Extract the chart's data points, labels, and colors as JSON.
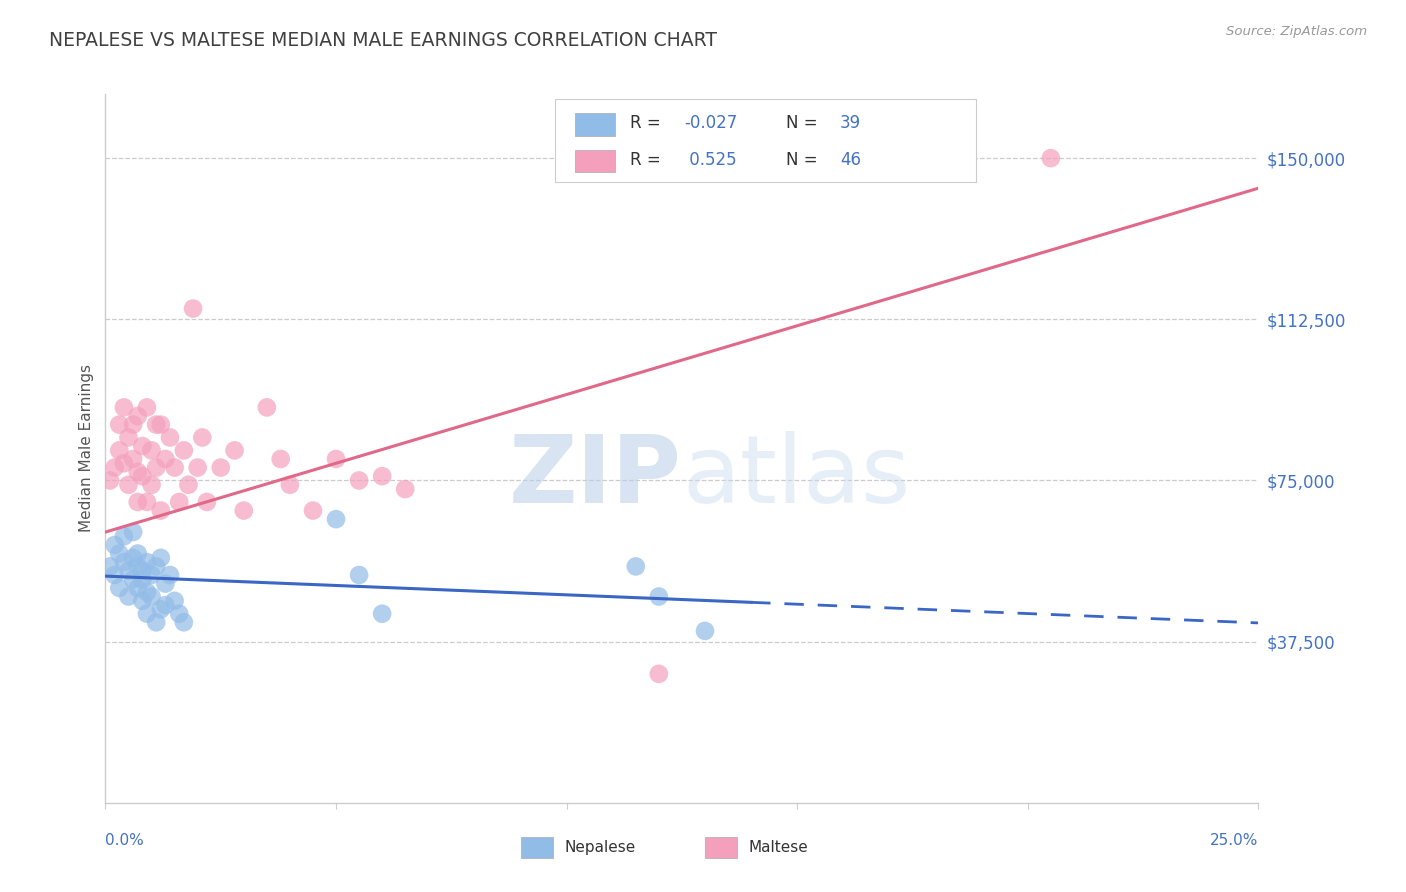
{
  "title": "NEPALESE VS MALTESE MEDIAN MALE EARNINGS CORRELATION CHART",
  "source": "Source: ZipAtlas.com",
  "ylabel": "Median Male Earnings",
  "x_range": [
    0.0,
    0.25
  ],
  "y_range": [
    0,
    165000
  ],
  "y_ticks": [
    37500,
    75000,
    112500,
    150000
  ],
  "nepalese_R": "-0.027",
  "nepalese_N": "39",
  "maltese_R": "0.525",
  "maltese_N": "46",
  "nepalese_color": "#92bce8",
  "maltese_color": "#f4a0bc",
  "nepalese_line_color": "#3a66c4",
  "maltese_line_color": "#e06888",
  "axis_label_color": "#4472c4",
  "title_color": "#404040",
  "background_color": "#ffffff",
  "watermark_color": "#dce8f5",
  "nepalese_scatter_x": [
    0.001,
    0.002,
    0.002,
    0.003,
    0.003,
    0.004,
    0.004,
    0.005,
    0.005,
    0.006,
    0.006,
    0.006,
    0.007,
    0.007,
    0.007,
    0.008,
    0.008,
    0.008,
    0.009,
    0.009,
    0.009,
    0.01,
    0.01,
    0.011,
    0.011,
    0.012,
    0.012,
    0.013,
    0.013,
    0.014,
    0.015,
    0.016,
    0.017,
    0.05,
    0.055,
    0.06,
    0.115,
    0.12,
    0.13
  ],
  "nepalese_scatter_y": [
    55000,
    53000,
    60000,
    58000,
    50000,
    56000,
    62000,
    54000,
    48000,
    57000,
    52000,
    63000,
    55000,
    50000,
    58000,
    54000,
    47000,
    52000,
    56000,
    49000,
    44000,
    53000,
    48000,
    55000,
    42000,
    57000,
    45000,
    51000,
    46000,
    53000,
    47000,
    44000,
    42000,
    66000,
    53000,
    44000,
    55000,
    48000,
    40000
  ],
  "maltese_scatter_x": [
    0.001,
    0.002,
    0.003,
    0.003,
    0.004,
    0.004,
    0.005,
    0.005,
    0.006,
    0.006,
    0.007,
    0.007,
    0.007,
    0.008,
    0.008,
    0.009,
    0.009,
    0.01,
    0.01,
    0.011,
    0.011,
    0.012,
    0.012,
    0.013,
    0.014,
    0.015,
    0.016,
    0.017,
    0.018,
    0.019,
    0.02,
    0.021,
    0.022,
    0.025,
    0.028,
    0.03,
    0.035,
    0.038,
    0.04,
    0.045,
    0.05,
    0.055,
    0.06,
    0.065,
    0.12,
    0.205
  ],
  "maltese_scatter_y": [
    75000,
    78000,
    82000,
    88000,
    79000,
    92000,
    74000,
    85000,
    80000,
    88000,
    77000,
    90000,
    70000,
    83000,
    76000,
    92000,
    70000,
    82000,
    74000,
    88000,
    78000,
    88000,
    68000,
    80000,
    85000,
    78000,
    70000,
    82000,
    74000,
    115000,
    78000,
    85000,
    70000,
    78000,
    82000,
    68000,
    92000,
    80000,
    74000,
    68000,
    80000,
    75000,
    76000,
    73000,
    30000,
    150000
  ],
  "nep_trendline": [
    0.0,
    0.155,
    0.25
  ],
  "nep_trend_y": [
    52000,
    50500,
    50000
  ],
  "mal_trendline_x0": 0.0,
  "mal_trendline_x1": 0.25,
  "mal_trendline_y0": 63000,
  "mal_trendline_y1": 143000
}
